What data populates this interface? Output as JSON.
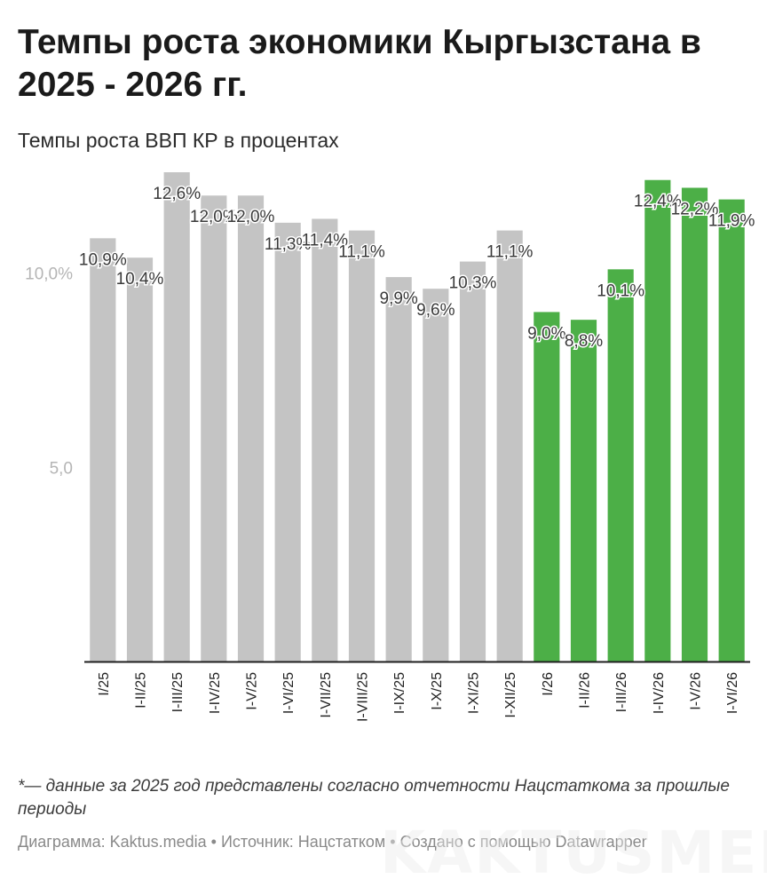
{
  "header": {
    "title": "Темпы роста экономики Кыргызстана в 2025 - 2026 гг.",
    "subtitle": "Темпы роста ВВП КР в процентах"
  },
  "footer": {
    "note": "*— данные за 2025 год представлены согласно отчетности Нацстаткома за прошлые периоды",
    "source": "Диаграмма: Kaktus.media • Источник: Нацстатком • Создано с помощью Datawrapper",
    "watermark": "KAKTUSMEDIA"
  },
  "chart_data": {
    "type": "bar",
    "title": "Темпы роста экономики Кыргызстана в 2025 - 2026 гг.",
    "subtitle": "Темпы роста ВВП КР в процентах",
    "categories": [
      "I/25",
      "I-II/25",
      "I-III/25",
      "I-IV/25",
      "I-V/25",
      "I-VI/25",
      "I-VII/25",
      "I-VIII/25",
      "I-IX/25",
      "I-X/25",
      "I-XI/25",
      "I-XII/25",
      "I/26",
      "I-II/26",
      "I-III/26",
      "I-IV/26",
      "I-V/26",
      "I-VI/26"
    ],
    "values": [
      10.9,
      10.4,
      12.6,
      12.0,
      12.0,
      11.3,
      11.4,
      11.1,
      9.9,
      9.6,
      10.3,
      11.1,
      9.0,
      8.8,
      10.1,
      12.4,
      12.2,
      11.9
    ],
    "labels": [
      "10,9%",
      "10,4%",
      "12,6%",
      "12,0%",
      "12,0%",
      "11,3%",
      "11,4%",
      "11,1%",
      "9,9%",
      "9,6%",
      "10,3%",
      "11,1%",
      "9,0%",
      "8,8%",
      "10,1%",
      "12,4%",
      "12,2%",
      "11,9%"
    ],
    "ylim": [
      0,
      12.6
    ],
    "yticks": [
      5,
      10
    ],
    "ytick_labels": [
      "5,0",
      "10,0%"
    ],
    "grid": false,
    "colors": {
      "2025": "#c4c4c4",
      "2026": "#4caf47",
      "axis": "#1f1f1f",
      "tick_label": "#b5b5b5",
      "value_label": "#3a3a3a"
    }
  }
}
